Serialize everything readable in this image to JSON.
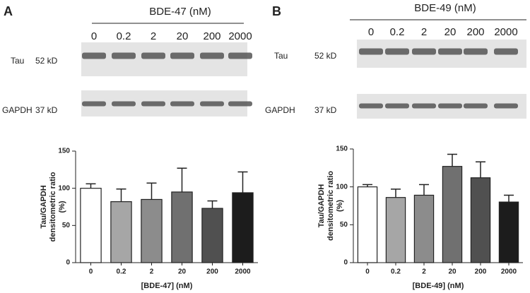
{
  "chart_data": [
    {
      "type": "bar",
      "panel_label": "A",
      "blot_title": "BDE-47 (nM)",
      "blot_rows": [
        {
          "name": "Tau",
          "size": "52 kD"
        },
        {
          "name": "GAPDH",
          "size": "37 kD"
        }
      ],
      "categories": [
        "0",
        "0.2",
        "2",
        "20",
        "200",
        "2000"
      ],
      "values": [
        100,
        82,
        85,
        95,
        73,
        94
      ],
      "errors": [
        6,
        17,
        22,
        32,
        10,
        28
      ],
      "colors": [
        "#ffffff",
        "#a6a6a6",
        "#8c8c8c",
        "#707070",
        "#505050",
        "#1c1c1c"
      ],
      "ylabel": [
        "Tau/GAPDH",
        "densitometric ratio",
        "(%)"
      ],
      "xlabel": "[BDE-47] (nM)",
      "ylim": [
        0,
        150
      ],
      "yticks": [
        0,
        50,
        100,
        150
      ],
      "grid": false
    },
    {
      "type": "bar",
      "panel_label": "B",
      "blot_title": "BDE-49 (nM)",
      "blot_rows": [
        {
          "name": "Tau",
          "size": "52 kD"
        },
        {
          "name": "GAPDH",
          "size": "37 kD"
        }
      ],
      "categories": [
        "0",
        "0.2",
        "2",
        "20",
        "200",
        "2000"
      ],
      "values": [
        100,
        86,
        89,
        127,
        112,
        80
      ],
      "errors": [
        3,
        11,
        14,
        16,
        21,
        9
      ],
      "colors": [
        "#ffffff",
        "#a6a6a6",
        "#8c8c8c",
        "#707070",
        "#505050",
        "#1c1c1c"
      ],
      "ylabel": [
        "Tau/GAPDH",
        "densitometric ratio",
        "(%)"
      ],
      "xlabel": "[BDE-49] (nM)",
      "ylim": [
        0,
        150
      ],
      "yticks": [
        0,
        50,
        100,
        150
      ],
      "grid": false
    }
  ]
}
